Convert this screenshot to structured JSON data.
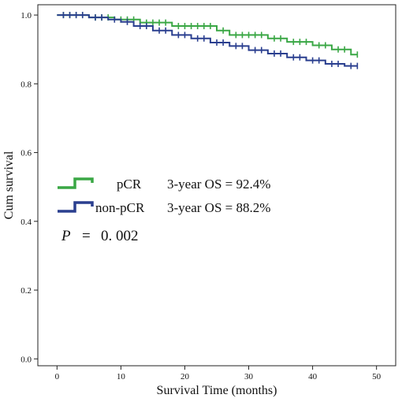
{
  "chart_data": {
    "type": "line",
    "subtype": "kaplan-meier",
    "xlabel": "Survival Time (months)",
    "ylabel": "Cum survival",
    "xlim": [
      -3,
      53
    ],
    "ylim": [
      -0.02,
      1.03
    ],
    "x_ticks": [
      0,
      10,
      20,
      30,
      40,
      50
    ],
    "x_tick_labels": [
      "0",
      "10",
      "20",
      "30",
      "40",
      "50"
    ],
    "y_ticks": [
      0.0,
      0.2,
      0.4,
      0.6,
      0.8,
      1.0
    ],
    "y_tick_labels": [
      "0.0",
      "0.2",
      "0.4",
      "0.6",
      "0.8",
      "1.0"
    ],
    "grid": false,
    "legend_placement": "center-left",
    "series": [
      {
        "name": "pCR",
        "color": "#3aa745",
        "steps": [
          [
            0,
            1.0
          ],
          [
            5,
            0.993
          ],
          [
            9,
            0.987
          ],
          [
            13,
            0.978
          ],
          [
            18,
            0.968
          ],
          [
            25,
            0.955
          ],
          [
            27,
            0.942
          ],
          [
            33,
            0.932
          ],
          [
            36,
            0.922
          ],
          [
            40,
            0.912
          ],
          [
            43,
            0.9
          ],
          [
            46,
            0.885
          ],
          [
            47,
            0.885
          ]
        ],
        "censored_x": [
          1,
          2,
          3,
          4,
          6,
          7,
          8,
          10,
          11,
          12,
          14,
          15,
          16,
          17,
          19,
          20,
          21,
          22,
          23,
          24,
          26,
          28,
          29,
          30,
          31,
          32,
          34,
          35,
          37,
          38,
          39,
          41,
          42,
          44,
          45,
          47
        ]
      },
      {
        "name": "non-pCR",
        "color": "#2a3f8f",
        "steps": [
          [
            0,
            1.0
          ],
          [
            5,
            0.993
          ],
          [
            8,
            0.987
          ],
          [
            10,
            0.98
          ],
          [
            12,
            0.968
          ],
          [
            15,
            0.955
          ],
          [
            18,
            0.942
          ],
          [
            21,
            0.932
          ],
          [
            24,
            0.92
          ],
          [
            27,
            0.91
          ],
          [
            30,
            0.898
          ],
          [
            33,
            0.888
          ],
          [
            36,
            0.877
          ],
          [
            39,
            0.868
          ],
          [
            42,
            0.858
          ],
          [
            45,
            0.852
          ],
          [
            47,
            0.852
          ]
        ],
        "censored_x": [
          1,
          2,
          3,
          4,
          6,
          7,
          9,
          11,
          13,
          14,
          16,
          17,
          19,
          20,
          22,
          23,
          25,
          26,
          28,
          29,
          31,
          32,
          34,
          35,
          37,
          38,
          40,
          41,
          43,
          44,
          46,
          47
        ]
      }
    ]
  },
  "legend": {
    "items": [
      {
        "label": "pCR",
        "stat": "3-year OS = 92.4%",
        "color": "#3aa745"
      },
      {
        "label": "non-pCR",
        "stat": "3-year OS = 88.2%",
        "color": "#2a3f8f"
      }
    ]
  },
  "p_value": {
    "symbol": "P",
    "equals": "=",
    "value": "0. 002"
  }
}
